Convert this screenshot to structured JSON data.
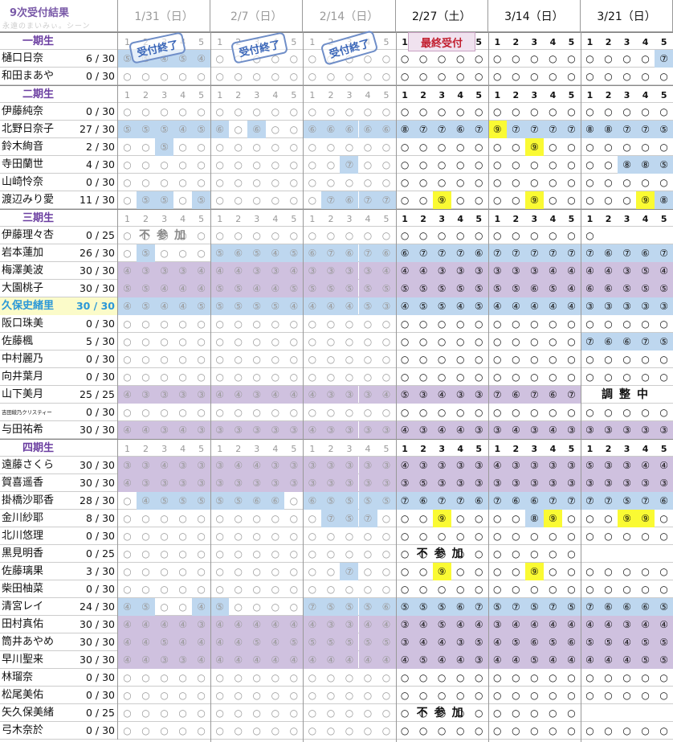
{
  "title": "9次受付結果",
  "subtitle": "永遠のまいみぃ。シーン",
  "dates": [
    {
      "label": "1/31（日）",
      "past": true
    },
    {
      "label": "2/7（日）",
      "past": true
    },
    {
      "label": "2/14（日）",
      "past": true
    },
    {
      "label": "2/27（土）",
      "past": false
    },
    {
      "label": "3/14（日）",
      "past": false
    },
    {
      "label": "3/21（日）",
      "past": false
    }
  ],
  "stamp_label": "受付終了",
  "final_label": "最終受付",
  "notes": {
    "absent": "不参加",
    "adjusting": "調整中"
  },
  "colors": {
    "purple": "#cfc1df",
    "blue": "#bed7ef",
    "yellow": "#fafa33",
    "generation": "#6a3da0"
  },
  "slot_numbers": [
    "1",
    "2",
    "3",
    "4",
    "5"
  ],
  "rows": [
    {
      "t": "g",
      "name": "一期生"
    },
    {
      "name": "樋口日奈",
      "count": "6 / 30",
      "c": "⑤⑤④⑤④ ○○○○○ ○○○○○ ○○○○○ ○○○○○ ○○○○⑦",
      "b": "BBBBB ..... ..... ..... ..... ....B"
    },
    {
      "name": "和田まあや",
      "count": "0 / 30"
    },
    {
      "t": "g",
      "name": "二期生"
    },
    {
      "name": "伊藤純奈",
      "count": "0 / 30"
    },
    {
      "name": "北野日奈子",
      "count": "27 / 30",
      "c": "⑤⑤⑤④⑤ ⑥○⑥○○ ⑥⑥⑥⑥⑥ ⑧⑦⑦⑥⑦ ⑨⑦⑦⑦⑦ ⑧⑧⑦⑦⑤",
      "b": "BBBBB B.B.. BBBBB BBBBB YBBBB BBBBB"
    },
    {
      "name": "鈴木絢音",
      "count": "2 / 30",
      "c": "○○⑤○○ ○○○○○ ○○○○○ ○○○○○ ○○⑨○○ ○○○○○",
      "b": "..B.. ..... ..... ..... ..Y.. ....."
    },
    {
      "name": "寺田蘭世",
      "count": "4 / 30",
      "c": "○○○○○ ○○○○○ ○○⑦○○ ○○○○○ ○○○○○ ○○⑧⑧⑤",
      "b": "..... ..... ..B.. ..... ..... ..BBB"
    },
    {
      "name": "山崎怜奈",
      "count": "0 / 30"
    },
    {
      "name": "渡辺みり愛",
      "count": "11 / 30",
      "c": "○⑤⑤○⑤ ○○○○○ ○⑦⑥⑦⑦ ○○⑨○○ ○○⑨○○ ○○○⑨⑧",
      "b": ".BB.B ..... .BBBB ..Y.. ..Y.. ...YB"
    },
    {
      "t": "g",
      "name": "三期生"
    },
    {
      "name": "伊藤理々杏",
      "count": "0 / 25",
      "c": "○    ○○○○○ ○○○○○ ○○○○○ ○○○○○ ○○○○○",
      "note": "absent",
      "note_col": 0
    },
    {
      "name": "岩本蓮加",
      "count": "26 / 30",
      "c": "○⑤○○○ ⑤⑥⑤④⑤ ⑥⑦⑥⑦⑥ ⑥⑦⑦⑦⑥ ⑦⑦⑦⑦⑦ ⑦⑥⑦⑥⑦",
      "b": ".B... BBBBB BBBBB BBBBB BBBBB BBBBB"
    },
    {
      "name": "梅澤美波",
      "count": "30 / 30",
      "c": "④③③③④ ④④③③④ ③③③③④ ④④③③③ ③③③④④ ④④③⑤④",
      "b": "PPPPP PPPPP PPPPP PPPPP PPPPP PPPPP"
    },
    {
      "name": "大園桃子",
      "count": "30 / 30",
      "c": "⑤⑤④④④ ⑤⑤④④⑤ ⑤⑤⑤⑤⑤ ⑤⑤⑤⑤⑤ ⑤⑤⑥⑤④ ⑥⑥⑤⑤⑤",
      "b": "PPPPP PPPPP PPPPP PPPPP PPPPP PPPPP"
    },
    {
      "name": "久保史緒里",
      "count": "30 / 30",
      "hl": true,
      "c": "④⑤④④⑤ ⑤⑤⑤⑤④ ④④④⑤③ ④⑤⑤④⑤ ④④④④④ ③③③③③",
      "b": "BBBBB BBBBB BBBBB BBBBB BBBBB BBBBB"
    },
    {
      "name": "阪口珠美",
      "count": "0 / 30"
    },
    {
      "name": "佐藤楓",
      "count": "5 / 30",
      "c": "○○○○○ ○○○○○ ○○○○○ ○○○○○ ○○○○○ ⑦⑥⑥⑦⑤",
      "b": "..... ..... ..... ..... ..... BBBBB"
    },
    {
      "name": "中村麗乃",
      "count": "0 / 30"
    },
    {
      "name": "向井葉月",
      "count": "0 / 30"
    },
    {
      "name": "山下美月",
      "count": "25 / 25",
      "c": "④③③③③ ④④③④④ ④③③③④ ⑤③④③③ ⑦⑥⑦⑥⑦      ",
      "b": "PPPPP PPPPP PPPPP PPPPP PPPPP .....",
      "note": "adjusting",
      "note_col": 5
    },
    {
      "name": "吉田綾乃クリスティー",
      "count": "0 / 30",
      "tiny": true
    },
    {
      "name": "与田祐希",
      "count": "30 / 30",
      "c": "④④③④③ ③③③③③ ④③③③③ ④③④④③ ③④③④③ ③③③③③",
      "b": "PPPPP PPPPP PPPPP PPPPP PPPPP PPPPP"
    },
    {
      "t": "g",
      "name": "四期生"
    },
    {
      "name": "遠藤さくら",
      "count": "30 / 30",
      "c": "③③④③③ ③④④③③ ③③③③③ ④③③③③ ④③③③③ ⑤③③④④",
      "b": "PPPPP PPPPP PPPPP PPPPP PPPPP PPPPP"
    },
    {
      "name": "賀喜遥香",
      "count": "30 / 30",
      "c": "④③③③③ ③③③③③ ③③③③③ ③⑤③③③ ③③③③③ ③③③③③",
      "b": "PPPPP PPPPP PPPPP PPPPP PPPPP PPPPP"
    },
    {
      "name": "掛橋沙耶香",
      "count": "28 / 30",
      "c": "○④⑤⑤⑤ ⑤⑤⑥⑥○ ⑥⑤⑤⑤⑤ ⑦⑥⑦⑦⑥ ⑦⑥⑥⑦⑦ ⑦⑦⑤⑦⑥",
      "b": ".BBBB BBBB. BBBBB BBBBB BBBBB BBBBB"
    },
    {
      "name": "金川紗耶",
      "count": "8 / 30",
      "c": "○○○○○ ○○○○○ ○⑦⑤⑦○ ○○⑨○○ ○○⑧⑨○ ○○⑨⑨○",
      "b": "..... ..... .BBB. ..Y.. ..BY. ..YY."
    },
    {
      "name": "北川悠理",
      "count": "0 / 30"
    },
    {
      "name": "黒見明香",
      "count": "0 / 25",
      "c": "○○○○○ ○○○○○ ○○○○○      ○○○○○ ○○○○○",
      "note": "absent",
      "note_col": 3
    },
    {
      "name": "佐藤璃果",
      "count": "3 / 30",
      "c": "○○○○○ ○○○○○ ○○⑦○○ ○○⑨○○ ○○⑨○○ ○○○○○",
      "b": "..... ..... ..B.. ..Y.. ..Y.. ....."
    },
    {
      "name": "柴田柚菜",
      "count": "0 / 30"
    },
    {
      "name": "清宮レイ",
      "count": "24 / 30",
      "c": "④⑤○○④ ⑤○○○○ ⑦⑤⑤⑤⑥ ⑤⑤⑤⑥⑦ ⑤⑦⑤⑦⑤ ⑦⑥⑥⑥⑤",
      "b": "BB..B B.... BBBBB BBBBB BBBBB BBBBB"
    },
    {
      "name": "田村真佑",
      "count": "30 / 30",
      "c": "④④④④③ ④④④④④ ④③③④④ ③④⑤④④ ③④④④④ ④④③④④",
      "b": "PPPPP PPPPP PPPPP PPPPP PPPPP PPPPP"
    },
    {
      "name": "筒井あやめ",
      "count": "30 / 30",
      "c": "④④⑤④④ ④④⑤④⑤ ⑤⑤⑤⑤⑤ ③④④③⑤ ④⑤⑥⑤⑥ ⑤⑤④⑤⑤",
      "b": "PPPPP PPPPP PPPPP PPPPP PPPPP PPPPP"
    },
    {
      "name": "早川聖来",
      "count": "30 / 30",
      "c": "④④③③④ ④④④④④ ④④④④④ ④⑤④④③ ④④⑤④④ ④④④⑤⑤",
      "b": "PPPPP PPPPP PPPPP PPPPP PPPPP PPPPP"
    },
    {
      "name": "林瑠奈",
      "count": "0 / 30"
    },
    {
      "name": "松尾美佑",
      "count": "0 / 30"
    },
    {
      "name": "矢久保美緒",
      "count": "0 / 25",
      "c": "○○○○○ ○○○○○ ○○○○○      ○○○○○ ○○○○○",
      "note": "absent",
      "note_col": 3
    },
    {
      "name": "弓木奈於",
      "count": "0 / 30"
    }
  ]
}
